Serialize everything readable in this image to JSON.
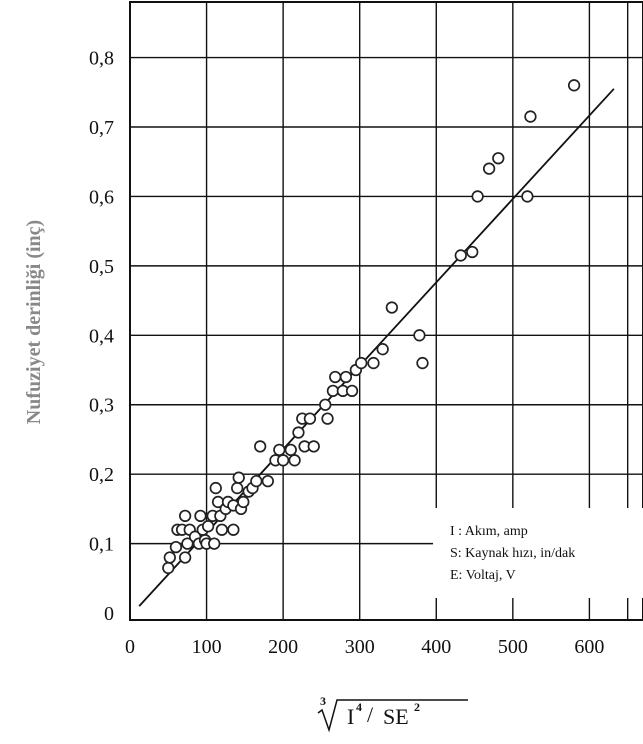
{
  "chart_data": {
    "type": "scatter",
    "xlabel": {
      "root_index": "3",
      "numerator": "I",
      "numerator_power": "4",
      "slash": "/",
      "denominator": "SE",
      "denominator_power": "2"
    },
    "ylabel": "Nufuziyet derinliği (inç)",
    "xlim": [
      0,
      670
    ],
    "ylim": [
      -0.01,
      0.88
    ],
    "xticks": [
      0,
      100,
      200,
      300,
      400,
      500,
      600
    ],
    "xtick_labels": [
      "0",
      "100",
      "200",
      "300",
      "400",
      "500",
      "600"
    ],
    "yticks": [
      0,
      0.1,
      0.2,
      0.3,
      0.4,
      0.5,
      0.6,
      0.7,
      0.8
    ],
    "ytick_labels": [
      "0",
      "0,1",
      "0,2",
      "0,3",
      "0,4",
      "0,5",
      "0,6",
      "0,7",
      "0,8"
    ],
    "grid": true,
    "legend_position": "bottom-right",
    "legend": [
      "I : Akım, amp",
      "S: Kaynak hızı, in/dak",
      "E: Voltaj, V"
    ],
    "series": [
      {
        "marker": "open-circle",
        "points": [
          [
            50,
            0.065
          ],
          [
            52,
            0.08
          ],
          [
            60,
            0.095
          ],
          [
            62,
            0.12
          ],
          [
            68,
            0.12
          ],
          [
            72,
            0.14
          ],
          [
            72,
            0.08
          ],
          [
            75,
            0.1
          ],
          [
            78,
            0.12
          ],
          [
            85,
            0.11
          ],
          [
            90,
            0.1
          ],
          [
            92,
            0.14
          ],
          [
            95,
            0.12
          ],
          [
            98,
            0.105
          ],
          [
            100,
            0.1
          ],
          [
            102,
            0.125
          ],
          [
            108,
            0.14
          ],
          [
            110,
            0.1
          ],
          [
            112,
            0.18
          ],
          [
            115,
            0.16
          ],
          [
            118,
            0.14
          ],
          [
            120,
            0.12
          ],
          [
            125,
            0.15
          ],
          [
            128,
            0.16
          ],
          [
            135,
            0.12
          ],
          [
            135,
            0.155
          ],
          [
            140,
            0.18
          ],
          [
            142,
            0.195
          ],
          [
            145,
            0.15
          ],
          [
            148,
            0.16
          ],
          [
            155,
            0.175
          ],
          [
            160,
            0.18
          ],
          [
            165,
            0.19
          ],
          [
            170,
            0.24
          ],
          [
            180,
            0.19
          ],
          [
            190,
            0.22
          ],
          [
            195,
            0.235
          ],
          [
            200,
            0.22
          ],
          [
            210,
            0.235
          ],
          [
            215,
            0.22
          ],
          [
            220,
            0.26
          ],
          [
            225,
            0.28
          ],
          [
            228,
            0.24
          ],
          [
            235,
            0.28
          ],
          [
            240,
            0.24
          ],
          [
            255,
            0.3
          ],
          [
            258,
            0.28
          ],
          [
            265,
            0.32
          ],
          [
            268,
            0.34
          ],
          [
            278,
            0.32
          ],
          [
            282,
            0.34
          ],
          [
            290,
            0.32
          ],
          [
            295,
            0.35
          ],
          [
            302,
            0.36
          ],
          [
            318,
            0.36
          ],
          [
            330,
            0.38
          ],
          [
            342,
            0.44
          ],
          [
            378,
            0.4
          ],
          [
            382,
            0.36
          ],
          [
            432,
            0.515
          ],
          [
            447,
            0.52
          ],
          [
            454,
            0.6
          ],
          [
            469,
            0.64
          ],
          [
            481,
            0.655
          ],
          [
            519,
            0.6
          ],
          [
            523,
            0.715
          ],
          [
            580,
            0.76
          ]
        ]
      }
    ],
    "fit_line": {
      "x": [
        12,
        632
      ],
      "y": [
        0.01,
        0.755
      ]
    },
    "colors": {
      "axes": "#111111",
      "grid": "#111111",
      "markers": "#222222",
      "fit_line": "#111111",
      "ylabel": "#888888"
    }
  }
}
